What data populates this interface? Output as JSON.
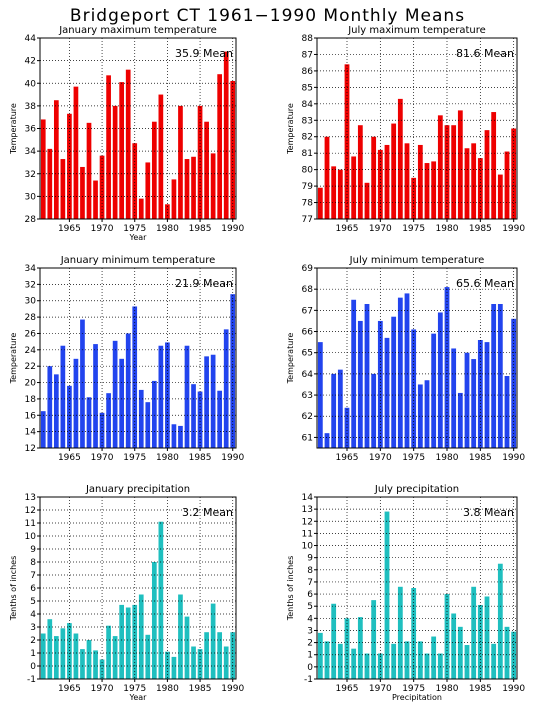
{
  "page_title": "Bridgeport CT  1961−1990 Monthly Means",
  "colors": {
    "red": "#ee0000",
    "blue": "#2244ee",
    "teal": "#1fbfbf"
  },
  "chart_data": [
    {
      "type": "bar",
      "title": "January maximum temperature",
      "mean_label": "35.9  Mean",
      "xlabel": "Year",
      "ylabel": "Temperature",
      "color": "red",
      "ylim": [
        28,
        44
      ],
      "yticks": [
        28,
        30,
        32,
        34,
        36,
        38,
        40,
        42,
        44
      ],
      "xlim": [
        1960.5,
        1990.5
      ],
      "xticks": [
        1965,
        1970,
        1975,
        1980,
        1985,
        1990
      ],
      "grid": true,
      "x": [
        1961,
        1962,
        1963,
        1964,
        1965,
        1966,
        1967,
        1968,
        1969,
        1970,
        1971,
        1972,
        1973,
        1974,
        1975,
        1976,
        1977,
        1978,
        1979,
        1980,
        1981,
        1982,
        1983,
        1984,
        1985,
        1986,
        1987,
        1988,
        1989,
        1990
      ],
      "values": [
        36.8,
        34.2,
        38.5,
        33.3,
        37.3,
        39.7,
        32.6,
        36.5,
        31.4,
        33.6,
        40.7,
        38.0,
        40.1,
        41.2,
        34.7,
        29.8,
        33.0,
        36.6,
        39.0,
        29.3,
        31.5,
        38.0,
        33.3,
        33.5,
        38.0,
        36.6,
        33.8,
        40.8,
        42.8,
        40.2
      ]
    },
    {
      "type": "bar",
      "title": "July maximum temperature",
      "mean_label": "81.6  Mean",
      "xlabel": "",
      "ylabel": "Temperature",
      "color": "red",
      "ylim": [
        77,
        88
      ],
      "yticks": [
        77,
        78,
        79,
        80,
        81,
        82,
        83,
        84,
        85,
        86,
        87,
        88
      ],
      "xlim": [
        1960.5,
        1990.5
      ],
      "xticks": [
        1965,
        1970,
        1975,
        1980,
        1985,
        1990
      ],
      "grid": true,
      "x": [
        1961,
        1962,
        1963,
        1964,
        1965,
        1966,
        1967,
        1968,
        1969,
        1970,
        1971,
        1972,
        1973,
        1974,
        1975,
        1976,
        1977,
        1978,
        1979,
        1980,
        1981,
        1982,
        1983,
        1984,
        1985,
        1986,
        1987,
        1988,
        1989,
        1990
      ],
      "values": [
        78.9,
        82.0,
        80.2,
        80.0,
        86.4,
        80.8,
        82.7,
        79.2,
        82.0,
        81.2,
        81.5,
        82.8,
        84.3,
        81.6,
        79.5,
        81.5,
        80.4,
        80.5,
        83.3,
        82.7,
        82.7,
        83.6,
        81.3,
        81.6,
        80.7,
        82.4,
        83.5,
        79.7,
        81.1,
        82.5
      ]
    },
    {
      "type": "bar",
      "title": "January minimum temperature",
      "mean_label": "21.9  Mean",
      "xlabel": "",
      "ylabel": "Temperature",
      "color": "blue",
      "ylim": [
        12,
        34
      ],
      "yticks": [
        12,
        14,
        16,
        18,
        20,
        22,
        24,
        26,
        28,
        30,
        32,
        34
      ],
      "xlim": [
        1960.5,
        1990.5
      ],
      "xticks": [
        1965,
        1970,
        1975,
        1980,
        1985,
        1990
      ],
      "grid": true,
      "x": [
        1961,
        1962,
        1963,
        1964,
        1965,
        1966,
        1967,
        1968,
        1969,
        1970,
        1971,
        1972,
        1973,
        1974,
        1975,
        1976,
        1977,
        1978,
        1979,
        1980,
        1981,
        1982,
        1983,
        1984,
        1985,
        1986,
        1987,
        1988,
        1989,
        1990
      ],
      "values": [
        16.5,
        22.0,
        21.0,
        24.5,
        19.6,
        22.9,
        27.7,
        18.2,
        24.7,
        16.3,
        18.7,
        25.1,
        22.9,
        26.0,
        29.3,
        19.1,
        17.6,
        20.2,
        24.5,
        24.9,
        14.9,
        14.7,
        24.5,
        19.8,
        18.9,
        23.2,
        23.4,
        19.0,
        26.5,
        30.8
      ]
    },
    {
      "type": "bar",
      "title": "July minimum temperature",
      "mean_label": "65.6  Mean",
      "xlabel": "",
      "ylabel": "Temperature",
      "color": "blue",
      "ylim": [
        60.5,
        69
      ],
      "yticks": [
        61,
        62,
        63,
        64,
        65,
        66,
        67,
        68,
        69
      ],
      "xlim": [
        1960.5,
        1990.5
      ],
      "xticks": [
        1965,
        1970,
        1975,
        1980,
        1985,
        1990
      ],
      "grid": true,
      "x": [
        1961,
        1962,
        1963,
        1964,
        1965,
        1966,
        1967,
        1968,
        1969,
        1970,
        1971,
        1972,
        1973,
        1974,
        1975,
        1976,
        1977,
        1978,
        1979,
        1980,
        1981,
        1982,
        1983,
        1984,
        1985,
        1986,
        1987,
        1988,
        1989,
        1990
      ],
      "values": [
        65.5,
        61.2,
        64.0,
        64.2,
        62.4,
        67.5,
        66.5,
        67.3,
        64.0,
        66.5,
        65.7,
        66.7,
        67.6,
        67.8,
        66.1,
        63.5,
        63.7,
        65.9,
        66.9,
        68.1,
        65.2,
        63.1,
        65.0,
        64.7,
        65.6,
        65.5,
        67.3,
        67.3,
        63.9,
        66.6
      ]
    },
    {
      "type": "bar",
      "title": "January precipitation",
      "mean_label": "3.2  Mean",
      "xlabel": "Year",
      "ylabel": "Tenths of inches",
      "color": "teal",
      "ylim": [
        -1,
        13
      ],
      "yticks": [
        -1,
        0,
        1,
        2,
        3,
        4,
        5,
        6,
        7,
        8,
        9,
        10,
        11,
        12,
        13
      ],
      "xlim": [
        1960.5,
        1990.5
      ],
      "xticks": [
        1965,
        1970,
        1975,
        1980,
        1985,
        1990
      ],
      "grid": true,
      "x": [
        1961,
        1962,
        1963,
        1964,
        1965,
        1966,
        1967,
        1968,
        1969,
        1970,
        1971,
        1972,
        1973,
        1974,
        1975,
        1976,
        1977,
        1978,
        1979,
        1980,
        1981,
        1982,
        1983,
        1984,
        1985,
        1986,
        1987,
        1988,
        1989,
        1990
      ],
      "values": [
        2.5,
        3.6,
        2.3,
        2.9,
        3.3,
        2.5,
        1.3,
        2.0,
        1.2,
        0.5,
        3.1,
        2.3,
        4.7,
        4.5,
        4.7,
        5.5,
        2.4,
        8.0,
        11.1,
        1.1,
        0.7,
        5.5,
        3.8,
        1.5,
        1.3,
        2.6,
        4.8,
        2.6,
        1.5,
        2.6
      ]
    },
    {
      "type": "bar",
      "title": "July precipitation",
      "mean_label": "3.8  Mean",
      "xlabel": "Precipitation",
      "ylabel": "Tenths of inches",
      "color": "teal",
      "ylim": [
        -1,
        14
      ],
      "yticks": [
        -1,
        0,
        1,
        2,
        3,
        4,
        5,
        6,
        7,
        8,
        9,
        10,
        11,
        12,
        13,
        14
      ],
      "xlim": [
        1960.5,
        1990.5
      ],
      "xticks": [
        1965,
        1970,
        1975,
        1980,
        1985,
        1990
      ],
      "grid": true,
      "x": [
        1961,
        1962,
        1963,
        1964,
        1965,
        1966,
        1967,
        1968,
        1969,
        1970,
        1971,
        1972,
        1973,
        1974,
        1975,
        1976,
        1977,
        1978,
        1979,
        1980,
        1981,
        1982,
        1983,
        1984,
        1985,
        1986,
        1987,
        1988,
        1989,
        1990
      ],
      "values": [
        2.8,
        2.1,
        5.2,
        1.9,
        4.0,
        1.5,
        4.1,
        1.1,
        5.5,
        1.1,
        12.8,
        1.9,
        6.6,
        2.1,
        6.5,
        2.1,
        1.1,
        2.5,
        1.1,
        6.0,
        4.4,
        3.3,
        1.8,
        6.6,
        5.1,
        5.8,
        1.9,
        8.5,
        3.3,
        2.9
      ]
    }
  ]
}
